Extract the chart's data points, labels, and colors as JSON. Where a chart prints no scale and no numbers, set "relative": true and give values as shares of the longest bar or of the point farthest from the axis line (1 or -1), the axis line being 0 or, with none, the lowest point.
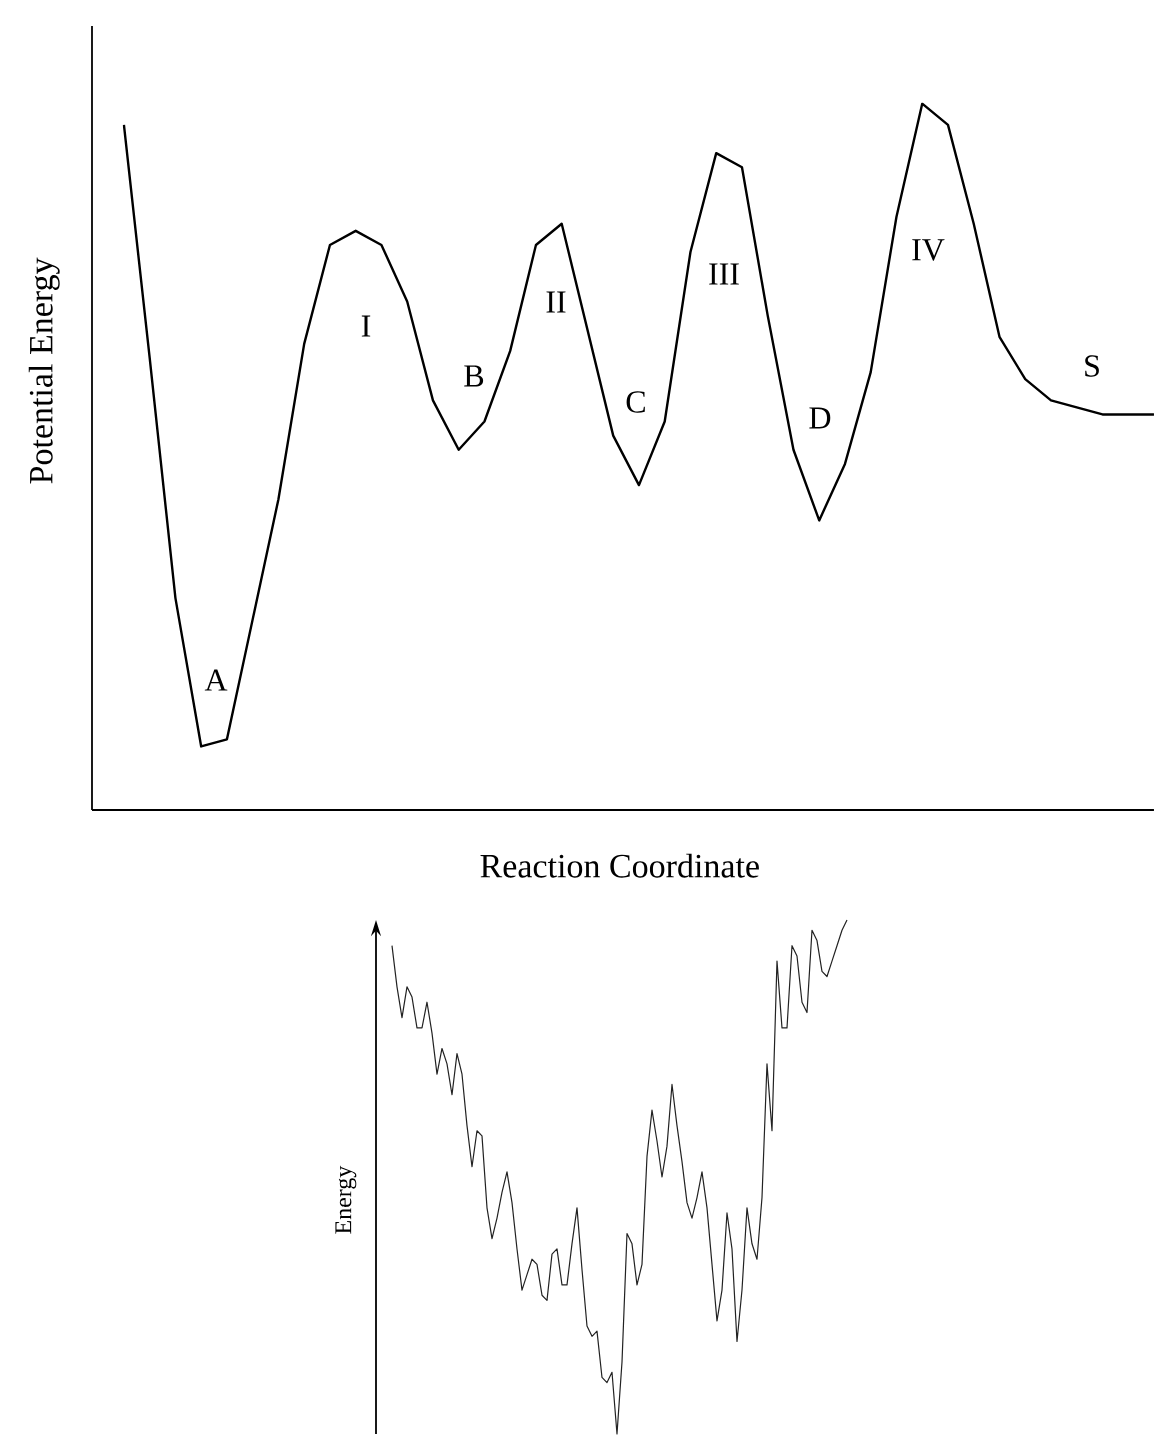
{
  "chart_data": [
    {
      "type": "line",
      "relative": true,
      "xlabel": "Reaction Coordinate",
      "ylabel": "Potential Energy",
      "color": "#000000",
      "tick_labels": false,
      "categories": [
        null,
        null,
        null,
        null,
        null,
        null,
        null,
        null,
        null,
        null,
        null,
        null,
        null,
        null,
        null,
        null,
        null,
        null,
        null,
        null,
        null,
        null,
        null,
        null,
        null,
        null,
        null,
        null,
        null,
        null,
        null,
        null,
        null,
        null,
        null,
        null,
        null,
        null,
        null,
        null,
        null
      ],
      "values": [
        0.97,
        0.64,
        0.3,
        0.09,
        0.1,
        0.27,
        0.44,
        0.66,
        0.8,
        0.82,
        0.8,
        0.72,
        0.58,
        0.51,
        0.55,
        0.65,
        0.8,
        0.83,
        0.68,
        0.53,
        0.46,
        0.55,
        0.79,
        0.93,
        0.91,
        0.7,
        0.51,
        0.41,
        0.49,
        0.62,
        0.84,
        1.0,
        0.97,
        0.83,
        0.67,
        0.61,
        0.58,
        0.57,
        0.56,
        0.56,
        0.56
      ],
      "annotations": [
        "A",
        "I",
        "B",
        "II",
        "C",
        "III",
        "D",
        "IV",
        "S"
      ]
    },
    {
      "type": "line",
      "relative": true,
      "ylabel": "Energy",
      "color": "#222222",
      "tick_labels": false,
      "categories": [
        null,
        null,
        null,
        null,
        null,
        null,
        null,
        null,
        null,
        null,
        null,
        null,
        null,
        null,
        null,
        null,
        null,
        null,
        null,
        null,
        null,
        null,
        null,
        null,
        null,
        null,
        null,
        null,
        null,
        null,
        null,
        null,
        null,
        null,
        null,
        null,
        null,
        null,
        null,
        null,
        null,
        null,
        null,
        null,
        null,
        null,
        null,
        null,
        null,
        null,
        null,
        null,
        null,
        null,
        null,
        null,
        null,
        null,
        null,
        null,
        null,
        null,
        null,
        null,
        null,
        null,
        null,
        null,
        null,
        null,
        null,
        null,
        null,
        null,
        null,
        null,
        null,
        null,
        null,
        null,
        null,
        null,
        null,
        null,
        null,
        null,
        null,
        null,
        null,
        null,
        null,
        null
      ],
      "values": [
        0.95,
        0.87,
        0.81,
        0.87,
        0.85,
        0.79,
        0.79,
        0.84,
        0.78,
        0.7,
        0.75,
        0.72,
        0.66,
        0.74,
        0.7,
        0.6,
        0.52,
        0.59,
        0.58,
        0.44,
        0.38,
        0.42,
        0.47,
        0.51,
        0.45,
        0.36,
        0.28,
        0.31,
        0.34,
        0.33,
        0.27,
        0.26,
        0.35,
        0.36,
        0.29,
        0.29,
        0.37,
        0.44,
        0.32,
        0.21,
        0.19,
        0.2,
        0.11,
        0.1,
        0.12,
        0.0,
        0.14,
        0.39,
        0.37,
        0.29,
        0.33,
        0.54,
        0.63,
        0.57,
        0.5,
        0.56,
        0.68,
        0.6,
        0.53,
        0.45,
        0.42,
        0.46,
        0.51,
        0.44,
        0.33,
        0.22,
        0.28,
        0.43,
        0.36,
        0.18,
        0.28,
        0.44,
        0.37,
        0.34,
        0.46,
        0.72,
        0.59,
        0.92,
        0.79,
        0.79,
        0.95,
        0.93,
        0.84,
        0.82,
        0.98,
        0.96,
        0.9,
        0.89,
        0.92,
        0.95,
        0.98,
        1.0
      ]
    }
  ]
}
